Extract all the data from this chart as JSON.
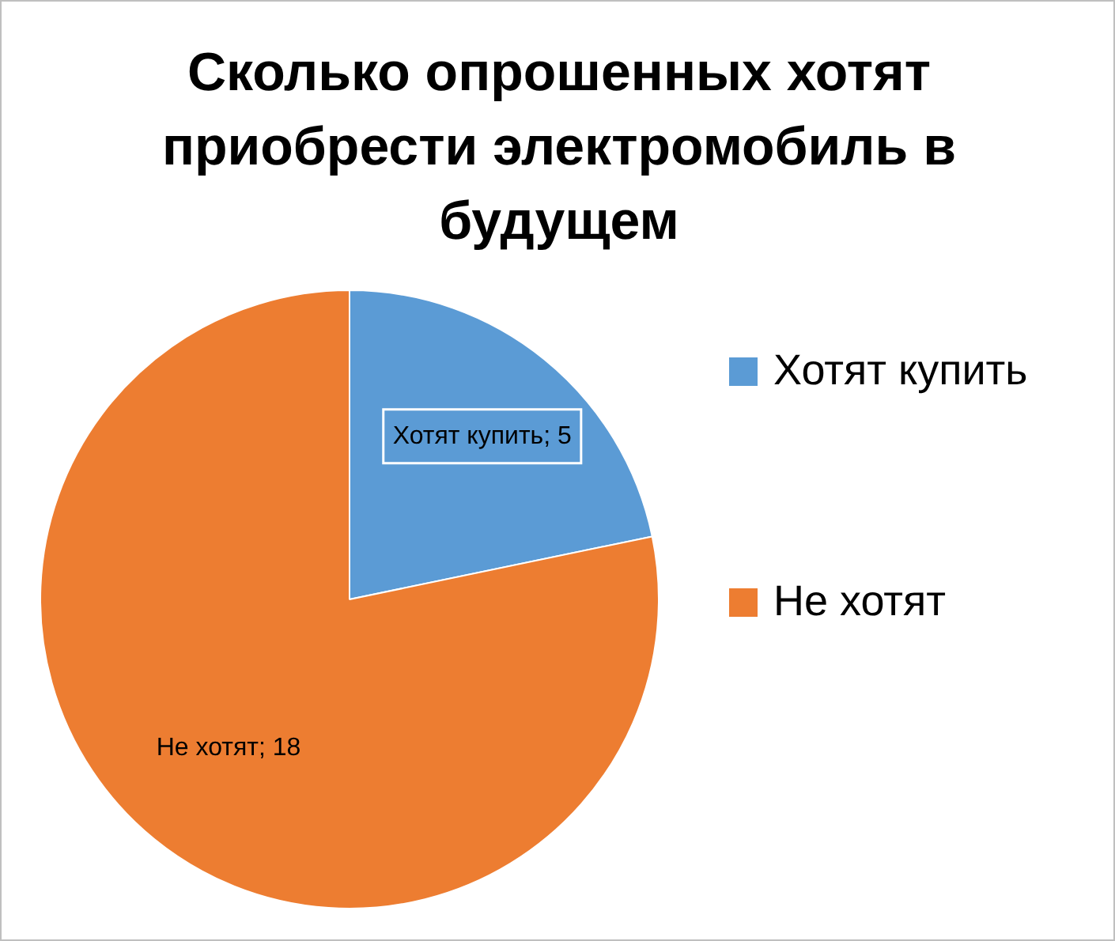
{
  "chart_data": {
    "type": "pie",
    "title": "Сколько опрошенных хотят приобрести электромобиль в будущем",
    "categories": [
      "Хотят купить",
      "Не хотят"
    ],
    "values": [
      5,
      18
    ],
    "colors": [
      "#5b9bd5",
      "#ed7d31"
    ],
    "value_labels": [
      "Хотят купить; 5",
      "Не хотят; 18"
    ],
    "legend": "right"
  }
}
